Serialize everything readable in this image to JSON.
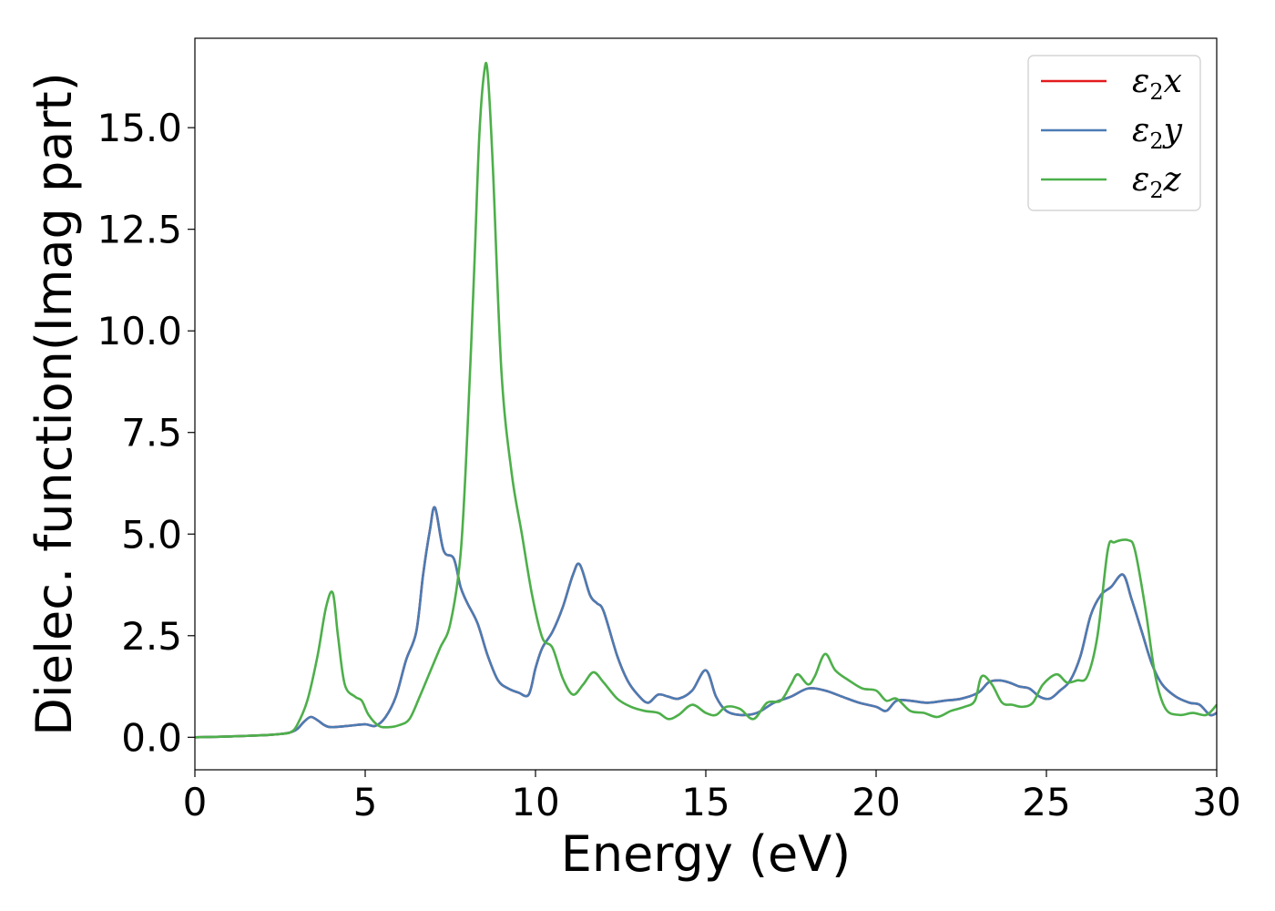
{
  "chart_data": {
    "type": "line",
    "title": "",
    "xlabel": "Energy (eV)",
    "ylabel": "Dielec. function(Imag part)",
    "xlim": [
      0,
      30
    ],
    "ylim": [
      -0.8,
      17.2
    ],
    "xticks": [
      0,
      5,
      10,
      15,
      20,
      25,
      30
    ],
    "xtick_labels": [
      "0",
      "5",
      "10",
      "15",
      "20",
      "25",
      "30"
    ],
    "yticks": [
      0,
      2.5,
      5,
      7.5,
      10,
      12.5,
      15
    ],
    "ytick_labels": [
      "0.0",
      "2.5",
      "5.0",
      "7.5",
      "10.0",
      "12.5",
      "15.0"
    ],
    "grid": false,
    "legend_position": "top-right",
    "series": [
      {
        "name": "ε2x",
        "legend_main": "ε",
        "legend_sub": "2",
        "legend_suffix": "x",
        "color": "#e41a1c",
        "x": [
          0,
          1,
          2,
          2.5,
          2.8,
          3.0,
          3.2,
          3.4,
          3.6,
          3.8,
          4.0,
          4.5,
          5.0,
          5.3,
          5.6,
          5.9,
          6.2,
          6.5,
          6.7,
          6.9,
          7.05,
          7.3,
          7.6,
          7.8,
          8.0,
          8.3,
          8.6,
          8.9,
          9.2,
          9.5,
          9.8,
          10.0,
          10.2,
          10.5,
          10.8,
          11.1,
          11.3,
          11.6,
          11.8,
          12.0,
          12.4,
          12.7,
          13.0,
          13.3,
          13.6,
          13.9,
          14.2,
          14.6,
          15.0,
          15.3,
          15.6,
          16.0,
          16.5,
          17.0,
          17.5,
          18.0,
          18.5,
          19.0,
          19.5,
          20.0,
          20.3,
          20.6,
          21.0,
          21.5,
          22.0,
          22.5,
          23.0,
          23.3,
          23.6,
          23.9,
          24.2,
          24.5,
          24.8,
          25.1,
          25.4,
          25.7,
          26.0,
          26.3,
          26.6,
          26.9,
          27.25,
          27.5,
          27.8,
          28.1,
          28.4,
          28.8,
          29.2,
          29.5,
          29.8,
          30.0
        ],
        "y": [
          0.0,
          0.02,
          0.05,
          0.08,
          0.12,
          0.2,
          0.38,
          0.5,
          0.42,
          0.3,
          0.25,
          0.28,
          0.32,
          0.28,
          0.5,
          1.0,
          1.9,
          2.6,
          4.0,
          5.1,
          5.65,
          4.6,
          4.4,
          3.7,
          3.3,
          2.8,
          2.0,
          1.4,
          1.2,
          1.1,
          1.05,
          1.7,
          2.2,
          2.6,
          3.2,
          4.0,
          4.25,
          3.5,
          3.3,
          3.1,
          2.0,
          1.4,
          1.05,
          0.85,
          1.05,
          1.0,
          0.95,
          1.15,
          1.65,
          1.0,
          0.65,
          0.55,
          0.6,
          0.85,
          1.0,
          1.2,
          1.15,
          1.0,
          0.85,
          0.75,
          0.65,
          0.9,
          0.9,
          0.85,
          0.9,
          0.95,
          1.1,
          1.35,
          1.4,
          1.35,
          1.25,
          1.2,
          1.0,
          0.95,
          1.15,
          1.4,
          2.0,
          3.0,
          3.5,
          3.7,
          4.0,
          3.4,
          2.6,
          1.8,
          1.3,
          1.0,
          0.85,
          0.8,
          0.55,
          0.6
        ]
      },
      {
        "name": "ε2y",
        "legend_main": "ε",
        "legend_sub": "2",
        "legend_suffix": "y",
        "color": "#4a7cb4",
        "x": [
          0,
          1,
          2,
          2.5,
          2.8,
          3.0,
          3.2,
          3.4,
          3.6,
          3.8,
          4.0,
          4.5,
          5.0,
          5.3,
          5.6,
          5.9,
          6.2,
          6.5,
          6.7,
          6.9,
          7.05,
          7.3,
          7.6,
          7.8,
          8.0,
          8.3,
          8.6,
          8.9,
          9.2,
          9.5,
          9.8,
          10.0,
          10.2,
          10.5,
          10.8,
          11.1,
          11.3,
          11.6,
          11.8,
          12.0,
          12.4,
          12.7,
          13.0,
          13.3,
          13.6,
          13.9,
          14.2,
          14.6,
          15.0,
          15.3,
          15.6,
          16.0,
          16.5,
          17.0,
          17.5,
          18.0,
          18.5,
          19.0,
          19.5,
          20.0,
          20.3,
          20.6,
          21.0,
          21.5,
          22.0,
          22.5,
          23.0,
          23.3,
          23.6,
          23.9,
          24.2,
          24.5,
          24.8,
          25.1,
          25.4,
          25.7,
          26.0,
          26.3,
          26.6,
          26.9,
          27.25,
          27.5,
          27.8,
          28.1,
          28.4,
          28.8,
          29.2,
          29.5,
          29.8,
          30.0
        ],
        "y": [
          0.0,
          0.02,
          0.05,
          0.08,
          0.12,
          0.2,
          0.38,
          0.5,
          0.42,
          0.3,
          0.25,
          0.28,
          0.32,
          0.28,
          0.5,
          1.0,
          1.9,
          2.6,
          4.0,
          5.1,
          5.65,
          4.6,
          4.4,
          3.7,
          3.3,
          2.8,
          2.0,
          1.4,
          1.2,
          1.1,
          1.05,
          1.7,
          2.2,
          2.6,
          3.2,
          4.0,
          4.25,
          3.5,
          3.3,
          3.1,
          2.0,
          1.4,
          1.05,
          0.85,
          1.05,
          1.0,
          0.95,
          1.15,
          1.65,
          1.0,
          0.65,
          0.55,
          0.6,
          0.85,
          1.0,
          1.2,
          1.15,
          1.0,
          0.85,
          0.75,
          0.65,
          0.9,
          0.9,
          0.85,
          0.9,
          0.95,
          1.1,
          1.35,
          1.4,
          1.35,
          1.25,
          1.2,
          1.0,
          0.95,
          1.15,
          1.4,
          2.0,
          3.0,
          3.5,
          3.7,
          4.0,
          3.4,
          2.6,
          1.8,
          1.3,
          1.0,
          0.85,
          0.8,
          0.55,
          0.6
        ]
      },
      {
        "name": "ε2z",
        "legend_main": "ε",
        "legend_sub": "2",
        "legend_suffix": "z",
        "color": "#4daf4a",
        "x": [
          0,
          1,
          2,
          2.5,
          2.8,
          3.0,
          3.3,
          3.6,
          3.85,
          4.05,
          4.2,
          4.4,
          4.7,
          4.9,
          5.1,
          5.4,
          5.7,
          6.0,
          6.3,
          6.6,
          6.9,
          7.2,
          7.5,
          7.8,
          8.0,
          8.2,
          8.35,
          8.5,
          8.6,
          8.75,
          9.0,
          9.3,
          9.6,
          9.9,
          10.2,
          10.5,
          10.8,
          11.1,
          11.4,
          11.7,
          12.0,
          12.4,
          12.8,
          13.2,
          13.6,
          13.9,
          14.2,
          14.6,
          15.0,
          15.3,
          15.6,
          16.0,
          16.4,
          16.8,
          17.2,
          17.5,
          17.7,
          18.0,
          18.2,
          18.5,
          18.8,
          19.2,
          19.6,
          20.0,
          20.3,
          20.6,
          21.0,
          21.4,
          21.8,
          22.2,
          22.6,
          22.9,
          23.1,
          23.4,
          23.7,
          24.0,
          24.3,
          24.6,
          24.9,
          25.3,
          25.6,
          25.9,
          26.2,
          26.5,
          26.8,
          27.0,
          27.4,
          27.6,
          27.9,
          28.2,
          28.5,
          28.9,
          29.3,
          29.7,
          30.0
        ],
        "y": [
          0.0,
          0.02,
          0.05,
          0.08,
          0.12,
          0.3,
          0.9,
          2.0,
          3.2,
          3.55,
          2.5,
          1.3,
          1.0,
          0.9,
          0.55,
          0.28,
          0.25,
          0.3,
          0.45,
          1.0,
          1.6,
          2.2,
          2.8,
          4.5,
          7.5,
          11.5,
          14.8,
          16.4,
          16.3,
          14.0,
          9.0,
          6.5,
          5.0,
          3.5,
          2.45,
          2.2,
          1.45,
          1.05,
          1.3,
          1.6,
          1.35,
          0.95,
          0.75,
          0.65,
          0.6,
          0.45,
          0.55,
          0.8,
          0.6,
          0.55,
          0.75,
          0.7,
          0.45,
          0.85,
          0.9,
          1.3,
          1.55,
          1.3,
          1.5,
          2.05,
          1.65,
          1.4,
          1.2,
          1.15,
          0.9,
          0.95,
          0.65,
          0.6,
          0.5,
          0.65,
          0.75,
          0.9,
          1.5,
          1.3,
          0.85,
          0.8,
          0.75,
          0.85,
          1.3,
          1.55,
          1.35,
          1.4,
          1.5,
          2.5,
          4.6,
          4.8,
          4.85,
          4.6,
          3.2,
          1.5,
          0.7,
          0.55,
          0.6,
          0.55,
          0.8
        ]
      }
    ]
  }
}
